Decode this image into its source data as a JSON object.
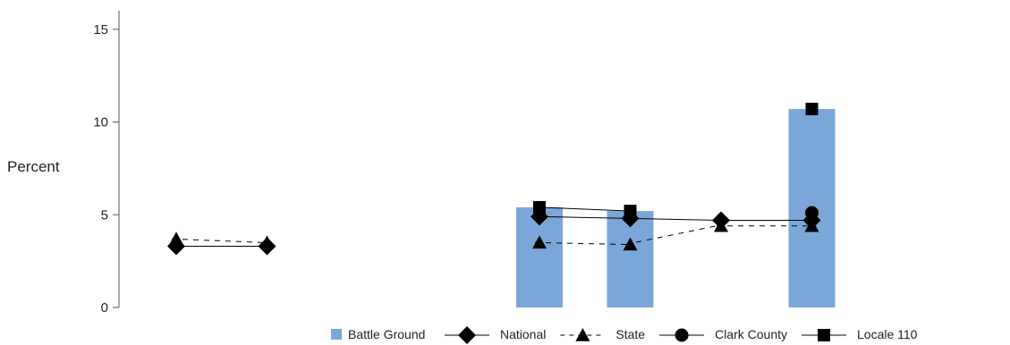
{
  "chart_data": {
    "type": "bar",
    "ylabel": "Percent",
    "ylim": [
      0,
      16
    ],
    "yticks": [
      0,
      5,
      10,
      15
    ],
    "x_positions": 8,
    "bar_series": {
      "name": "Battle Ground",
      "color": "#7ba7d8",
      "values": [
        null,
        null,
        null,
        null,
        5.4,
        5.2,
        null,
        10.7
      ]
    },
    "line_series": [
      {
        "name": "National",
        "marker": "diamond",
        "dash": "solid",
        "values": [
          3.3,
          3.3,
          null,
          null,
          4.9,
          4.8,
          4.7,
          4.7
        ]
      },
      {
        "name": "State",
        "marker": "triangle",
        "dash": "dashed",
        "values": [
          3.7,
          3.5,
          null,
          null,
          3.5,
          3.4,
          4.4,
          4.4
        ]
      },
      {
        "name": "Clark County",
        "marker": "circle",
        "dash": "solid",
        "values": [
          null,
          null,
          null,
          null,
          null,
          null,
          null,
          5.1
        ]
      },
      {
        "name": "Locale 110",
        "marker": "square",
        "dash": "solid",
        "values": [
          null,
          null,
          null,
          null,
          5.4,
          5.2,
          null,
          10.7
        ]
      }
    ],
    "legend": [
      "Battle Ground",
      "National",
      "State",
      "Clark County",
      "Locale 110"
    ],
    "legend_position": "bottom"
  }
}
